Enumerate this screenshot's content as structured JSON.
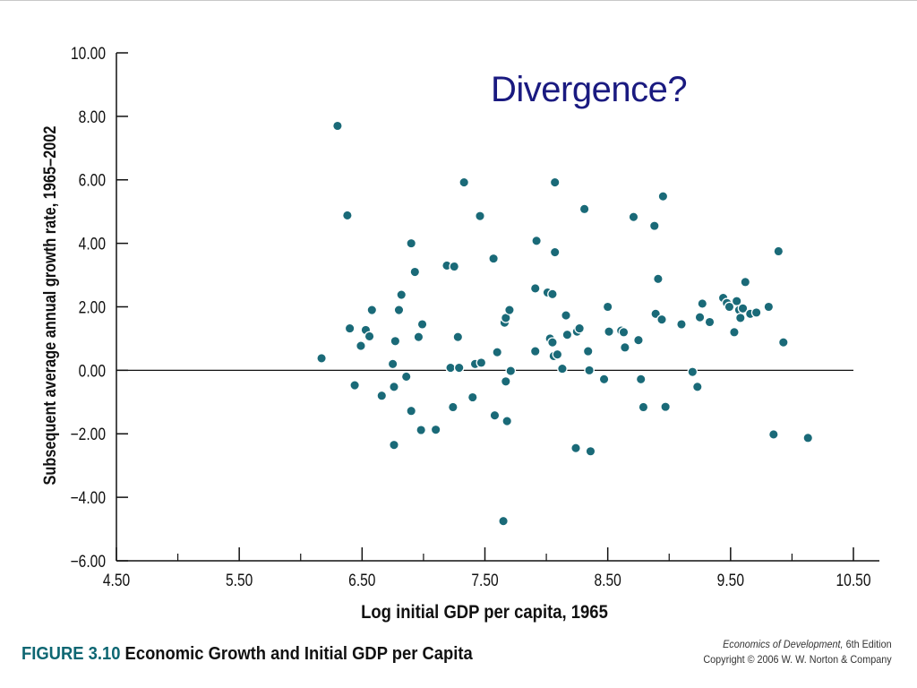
{
  "slide": {
    "title": "Divergence?"
  },
  "caption": {
    "figure_label": "FIGURE 3.10",
    "figure_title": "Economic Growth and Initial GDP per Capita",
    "book_title": "Economics of Development,",
    "edition": "6th Edition",
    "copyright": "Copyright © 2006 W. W. Norton & Company"
  },
  "colors": {
    "marker": "#1a6a78",
    "title": "#1a1a80",
    "figure_label": "#0d6672"
  },
  "chart_data": {
    "type": "scatter",
    "title": "",
    "xlabel": "Log initial GDP per capita, 1965",
    "ylabel": "Subsequent average annual growth rate, 1965–2002",
    "xlim": [
      4.5,
      10.5
    ],
    "ylim": [
      -6.0,
      10.0
    ],
    "x_ticks": [
      "4.50",
      "5.50",
      "6.50",
      "7.50",
      "8.50",
      "9.50",
      "10.50"
    ],
    "y_ticks": [
      "10.00",
      "8.00",
      "6.00",
      "4.00",
      "2.00",
      "0.00",
      "−2.00",
      "−4.00",
      "−6.00"
    ],
    "x_tick_values": [
      4.5,
      5.5,
      6.5,
      7.5,
      8.5,
      9.5,
      10.5
    ],
    "y_tick_values": [
      10,
      8,
      6,
      4,
      2,
      0,
      -2,
      -4,
      -6
    ],
    "x_minor_ticks": [
      5.0,
      6.0,
      7.0,
      8.0,
      9.0,
      10.0
    ],
    "reference_line_y": 0.0,
    "grid": false,
    "points": [
      {
        "x": 6.17,
        "y": 0.38
      },
      {
        "x": 6.3,
        "y": 7.7
      },
      {
        "x": 6.38,
        "y": 4.88
      },
      {
        "x": 6.4,
        "y": 1.32
      },
      {
        "x": 6.44,
        "y": -0.47
      },
      {
        "x": 6.49,
        "y": 0.77
      },
      {
        "x": 6.53,
        "y": 1.27
      },
      {
        "x": 6.56,
        "y": 1.07
      },
      {
        "x": 6.58,
        "y": 1.9
      },
      {
        "x": 6.66,
        "y": -0.8
      },
      {
        "x": 6.75,
        "y": 0.2
      },
      {
        "x": 6.76,
        "y": -2.35
      },
      {
        "x": 6.76,
        "y": -0.52
      },
      {
        "x": 6.77,
        "y": 0.92
      },
      {
        "x": 6.8,
        "y": 1.9
      },
      {
        "x": 6.82,
        "y": 2.38
      },
      {
        "x": 6.86,
        "y": -0.2
      },
      {
        "x": 6.9,
        "y": 4.0
      },
      {
        "x": 6.9,
        "y": -1.28
      },
      {
        "x": 6.93,
        "y": 3.1
      },
      {
        "x": 6.96,
        "y": 1.05
      },
      {
        "x": 6.98,
        "y": -1.88
      },
      {
        "x": 6.99,
        "y": 1.45
      },
      {
        "x": 7.1,
        "y": -1.87
      },
      {
        "x": 7.19,
        "y": 3.3
      },
      {
        "x": 7.22,
        "y": 0.08
      },
      {
        "x": 7.24,
        "y": -1.16
      },
      {
        "x": 7.25,
        "y": 3.27
      },
      {
        "x": 7.28,
        "y": 1.05
      },
      {
        "x": 7.29,
        "y": 0.08
      },
      {
        "x": 7.33,
        "y": 5.92
      },
      {
        "x": 7.4,
        "y": -0.85
      },
      {
        "x": 7.42,
        "y": 0.2
      },
      {
        "x": 7.46,
        "y": 4.86
      },
      {
        "x": 7.47,
        "y": 0.24
      },
      {
        "x": 7.57,
        "y": 3.52
      },
      {
        "x": 7.58,
        "y": -1.42
      },
      {
        "x": 7.6,
        "y": 0.57
      },
      {
        "x": 7.65,
        "y": -4.75
      },
      {
        "x": 7.66,
        "y": 1.5
      },
      {
        "x": 7.67,
        "y": 1.65
      },
      {
        "x": 7.67,
        "y": -0.35
      },
      {
        "x": 7.68,
        "y": -1.6
      },
      {
        "x": 7.7,
        "y": 1.9
      },
      {
        "x": 7.71,
        "y": -0.02
      },
      {
        "x": 7.91,
        "y": 0.6
      },
      {
        "x": 7.91,
        "y": 2.58
      },
      {
        "x": 7.92,
        "y": 4.08
      },
      {
        "x": 8.01,
        "y": 2.45
      },
      {
        "x": 8.03,
        "y": 1.0
      },
      {
        "x": 8.05,
        "y": 2.4
      },
      {
        "x": 8.05,
        "y": 0.88
      },
      {
        "x": 8.06,
        "y": 0.45
      },
      {
        "x": 8.07,
        "y": 5.92
      },
      {
        "x": 8.07,
        "y": 3.72
      },
      {
        "x": 8.09,
        "y": 0.5
      },
      {
        "x": 8.13,
        "y": 0.05
      },
      {
        "x": 8.16,
        "y": 1.73
      },
      {
        "x": 8.17,
        "y": 1.12
      },
      {
        "x": 8.24,
        "y": -2.45
      },
      {
        "x": 8.25,
        "y": 1.22
      },
      {
        "x": 8.27,
        "y": 1.32
      },
      {
        "x": 8.31,
        "y": 5.08
      },
      {
        "x": 8.34,
        "y": 0.6
      },
      {
        "x": 8.35,
        "y": 0.0
      },
      {
        "x": 8.36,
        "y": -2.55
      },
      {
        "x": 8.47,
        "y": -0.28
      },
      {
        "x": 8.5,
        "y": 2.0
      },
      {
        "x": 8.51,
        "y": 1.22
      },
      {
        "x": 8.61,
        "y": 1.25
      },
      {
        "x": 8.63,
        "y": 1.2
      },
      {
        "x": 8.64,
        "y": 0.72
      },
      {
        "x": 8.71,
        "y": 4.83
      },
      {
        "x": 8.75,
        "y": 0.95
      },
      {
        "x": 8.77,
        "y": -0.28
      },
      {
        "x": 8.79,
        "y": -1.16
      },
      {
        "x": 8.88,
        "y": 4.55
      },
      {
        "x": 8.89,
        "y": 1.78
      },
      {
        "x": 8.91,
        "y": 2.88
      },
      {
        "x": 8.94,
        "y": 1.6
      },
      {
        "x": 8.95,
        "y": 5.48
      },
      {
        "x": 8.97,
        "y": -1.15
      },
      {
        "x": 9.1,
        "y": 1.45
      },
      {
        "x": 9.19,
        "y": -0.05
      },
      {
        "x": 9.23,
        "y": -0.52
      },
      {
        "x": 9.25,
        "y": 1.67
      },
      {
        "x": 9.27,
        "y": 2.1
      },
      {
        "x": 9.33,
        "y": 1.52
      },
      {
        "x": 9.44,
        "y": 2.28
      },
      {
        "x": 9.47,
        "y": 2.12
      },
      {
        "x": 9.49,
        "y": 2.0
      },
      {
        "x": 9.53,
        "y": 1.2
      },
      {
        "x": 9.55,
        "y": 2.18
      },
      {
        "x": 9.57,
        "y": 1.9
      },
      {
        "x": 9.58,
        "y": 1.65
      },
      {
        "x": 9.6,
        "y": 1.95
      },
      {
        "x": 9.62,
        "y": 2.78
      },
      {
        "x": 9.66,
        "y": 1.78
      },
      {
        "x": 9.71,
        "y": 1.82
      },
      {
        "x": 9.81,
        "y": 2.0
      },
      {
        "x": 9.85,
        "y": -2.02
      },
      {
        "x": 9.89,
        "y": 3.75
      },
      {
        "x": 9.93,
        "y": 0.88
      },
      {
        "x": 10.13,
        "y": -2.13
      }
    ]
  }
}
